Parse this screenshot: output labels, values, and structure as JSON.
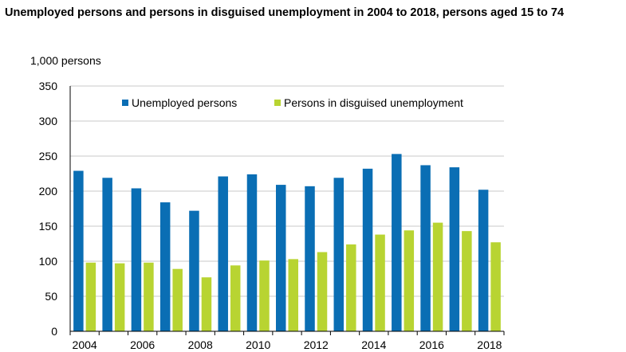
{
  "title": "Unemployed persons and persons in disguised unemployment in 2004 to 2018, persons aged 15 to 74",
  "chart_data": {
    "type": "bar",
    "ylabel": "1,000 persons",
    "ylim": [
      0,
      350
    ],
    "yticks": [
      0,
      50,
      100,
      150,
      200,
      250,
      300,
      350
    ],
    "categories": [
      "2004",
      "2005",
      "2006",
      "2007",
      "2008",
      "2009",
      "2010",
      "2011",
      "2012",
      "2013",
      "2014",
      "2015",
      "2016",
      "2017",
      "2018"
    ],
    "xtick_labels": [
      "2004",
      "",
      "2006",
      "",
      "2008",
      "",
      "2010",
      "",
      "2012",
      "",
      "2014",
      "",
      "2016",
      "",
      "2018"
    ],
    "grid": true,
    "legend_position": "top",
    "series": [
      {
        "name": "Unemployed persons",
        "color": "#0a6eb4",
        "values": [
          229,
          219,
          204,
          184,
          172,
          221,
          224,
          209,
          207,
          219,
          232,
          253,
          237,
          234,
          202
        ]
      },
      {
        "name": "Persons in disguised unemployment",
        "color": "#b8d432",
        "values": [
          98,
          97,
          98,
          89,
          77,
          94,
          101,
          103,
          113,
          124,
          138,
          144,
          155,
          143,
          127
        ]
      }
    ]
  }
}
